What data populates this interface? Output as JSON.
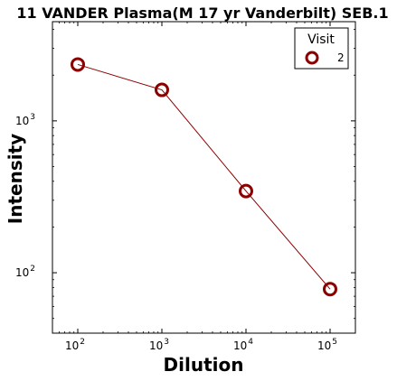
{
  "chart_data": {
    "type": "line",
    "title": "11 VANDER Plasma(M 17 yr Vanderbilt) SEB.1",
    "xlabel": "Dilution",
    "ylabel": "Intensity",
    "xscale": "log",
    "yscale": "log",
    "xlim": [
      50,
      200000
    ],
    "ylim": [
      40,
      4500
    ],
    "x_ticks": [
      {
        "value": 100,
        "base": "10",
        "exp": "2"
      },
      {
        "value": 1000,
        "base": "10",
        "exp": "3"
      },
      {
        "value": 10000,
        "base": "10",
        "exp": "4"
      },
      {
        "value": 100000,
        "base": "10",
        "exp": "5"
      }
    ],
    "y_ticks": [
      {
        "value": 100,
        "base": "10",
        "exp": "2"
      },
      {
        "value": 1000,
        "base": "10",
        "exp": "3"
      }
    ],
    "legend": {
      "title": "Visit",
      "position": "top-right"
    },
    "series": [
      {
        "name": "2",
        "color": "#8b0000",
        "marker": "open-circle",
        "x": [
          100,
          1000,
          10000,
          100000
        ],
        "y": [
          2350,
          1600,
          345,
          78
        ]
      }
    ]
  }
}
